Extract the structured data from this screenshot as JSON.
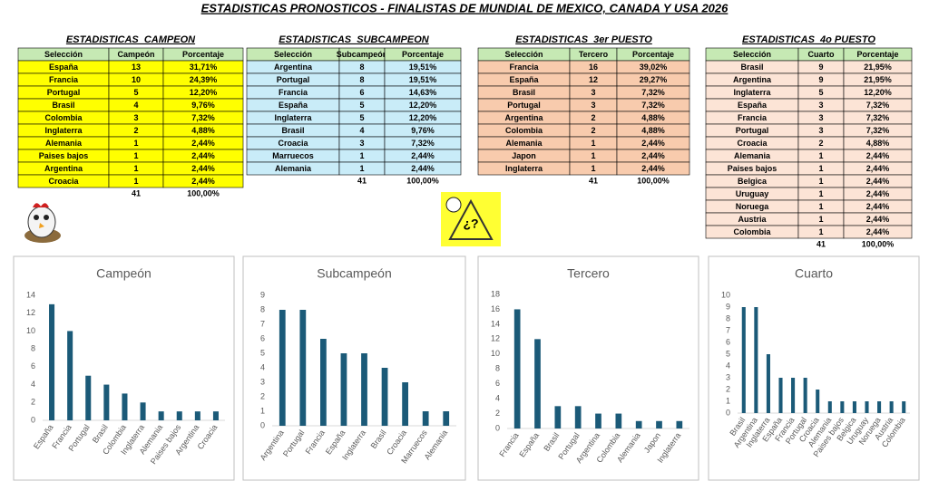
{
  "title": "ESTADISTICAS PRONOSTICOS  -  FINALISTAS DE MUNDIAL DE MEXICO, CANADA Y USA 2026",
  "logo": "¿?",
  "tables": [
    {
      "title": "ESTADISTICAS_CAMPEON",
      "color": "#ffff00",
      "header": [
        "Selección",
        "Campeón",
        "Porcentaje"
      ],
      "rows": [
        [
          "España",
          13,
          "31,71%"
        ],
        [
          "Francia",
          10,
          "24,39%"
        ],
        [
          "Portugal",
          5,
          "12,20%"
        ],
        [
          "Brasil",
          4,
          "9,76%"
        ],
        [
          "Colombia",
          3,
          "7,32%"
        ],
        [
          "Inglaterra",
          2,
          "4,88%"
        ],
        [
          "Alemania",
          1,
          "2,44%"
        ],
        [
          "Paises bajos",
          1,
          "2,44%"
        ],
        [
          "Argentina",
          1,
          "2,44%"
        ],
        [
          "Croacia",
          1,
          "2,44%"
        ]
      ],
      "total": [
        41,
        "100,00%"
      ]
    },
    {
      "title": "ESTADISTICAS_SUBCAMPEON",
      "color": "#c9ecf8",
      "header": [
        "Selección",
        "Subcampeón",
        "Porcentaje"
      ],
      "rows": [
        [
          "Argentina",
          8,
          "19,51%"
        ],
        [
          "Portugal",
          8,
          "19,51%"
        ],
        [
          "Francia",
          6,
          "14,63%"
        ],
        [
          "España",
          5,
          "12,20%"
        ],
        [
          "Inglaterra",
          5,
          "12,20%"
        ],
        [
          "Brasil",
          4,
          "9,76%"
        ],
        [
          "Croacia",
          3,
          "7,32%"
        ],
        [
          "Marruecos",
          1,
          "2,44%"
        ],
        [
          "Alemania",
          1,
          "2,44%"
        ]
      ],
      "total": [
        41,
        "100,00%"
      ]
    },
    {
      "title": "ESTADISTICAS_3er PUESTO",
      "color": "#f8cbad",
      "header": [
        "Selección",
        "Tercero",
        "Porcentaje"
      ],
      "rows": [
        [
          "Francia",
          16,
          "39,02%"
        ],
        [
          "España",
          12,
          "29,27%"
        ],
        [
          "Brasil",
          3,
          "7,32%"
        ],
        [
          "Portugal",
          3,
          "7,32%"
        ],
        [
          "Argentina",
          2,
          "4,88%"
        ],
        [
          "Colombia",
          2,
          "4,88%"
        ],
        [
          "Alemania",
          1,
          "2,44%"
        ],
        [
          "Japon",
          1,
          "2,44%"
        ],
        [
          "Inglaterra",
          1,
          "2,44%"
        ]
      ],
      "total": [
        41,
        "100,00%"
      ]
    },
    {
      "title": "ESTADISTICAS_4o PUESTO",
      "color": "#fce4d6",
      "header": [
        "Selección",
        "Cuarto",
        "Porcentaje"
      ],
      "rows": [
        [
          "Brasil",
          9,
          "21,95%"
        ],
        [
          "Argentina",
          9,
          "21,95%"
        ],
        [
          "Inglaterra",
          5,
          "12,20%"
        ],
        [
          "España",
          3,
          "7,32%"
        ],
        [
          "Francia",
          3,
          "7,32%"
        ],
        [
          "Portugal",
          3,
          "7,32%"
        ],
        [
          "Croacia",
          2,
          "4,88%"
        ],
        [
          "Alemania",
          1,
          "2,44%"
        ],
        [
          "Paises bajos",
          1,
          "2,44%"
        ],
        [
          "Belgica",
          1,
          "2,44%"
        ],
        [
          "Uruguay",
          1,
          "2,44%"
        ],
        [
          "Noruega",
          1,
          "2,44%"
        ],
        [
          "Austria",
          1,
          "2,44%"
        ],
        [
          "Colombia",
          1,
          "2,44%"
        ]
      ],
      "total": [
        41,
        "100,00%"
      ]
    }
  ],
  "chart_data": [
    {
      "type": "bar",
      "title": "Campeón",
      "color": "#1b5a78",
      "categories": [
        "España",
        "Francia",
        "Portugal",
        "Brasil",
        "Colombia",
        "Inglaterra",
        "Alemania",
        "Paises bajos",
        "Argentina",
        "Croacia"
      ],
      "values": [
        13,
        10,
        5,
        4,
        3,
        2,
        1,
        1,
        1,
        1
      ],
      "ylim": [
        0,
        14
      ],
      "yticks": [
        0,
        2,
        4,
        6,
        8,
        10,
        12,
        14
      ]
    },
    {
      "type": "bar",
      "title": "Subcampeón",
      "color": "#1b5a78",
      "categories": [
        "Argentina",
        "Portugal",
        "Francia",
        "España",
        "Inglaterra",
        "Brasil",
        "Croacia",
        "Marruecos",
        "Alemania"
      ],
      "values": [
        8,
        8,
        6,
        5,
        5,
        4,
        3,
        1,
        1
      ],
      "ylim": [
        0,
        9
      ],
      "yticks": [
        0,
        1,
        2,
        3,
        4,
        5,
        6,
        7,
        8,
        9
      ]
    },
    {
      "type": "bar",
      "title": "Tercero",
      "color": "#1b5a78",
      "categories": [
        "Francia",
        "España",
        "Brasil",
        "Portugal",
        "Argentina",
        "Colombia",
        "Alemania",
        "Japon",
        "Inglaterra"
      ],
      "values": [
        16,
        12,
        3,
        3,
        2,
        2,
        1,
        1,
        1
      ],
      "ylim": [
        0,
        18
      ],
      "yticks": [
        0,
        2,
        4,
        6,
        8,
        10,
        12,
        14,
        16,
        18
      ]
    },
    {
      "type": "bar",
      "title": "Cuarto",
      "color": "#1b5a78",
      "categories": [
        "Brasil",
        "Argentina",
        "Inglaterra",
        "España",
        "Francia",
        "Portugal",
        "Croacia",
        "Alemania",
        "Paises bajos",
        "Belgica",
        "Uruguay",
        "Noruega",
        "Austria",
        "Colombia"
      ],
      "values": [
        9,
        9,
        5,
        3,
        3,
        3,
        2,
        1,
        1,
        1,
        1,
        1,
        1,
        1
      ],
      "ylim": [
        0,
        10
      ],
      "yticks": [
        0,
        1,
        2,
        3,
        4,
        5,
        6,
        7,
        8,
        9,
        10
      ]
    }
  ]
}
